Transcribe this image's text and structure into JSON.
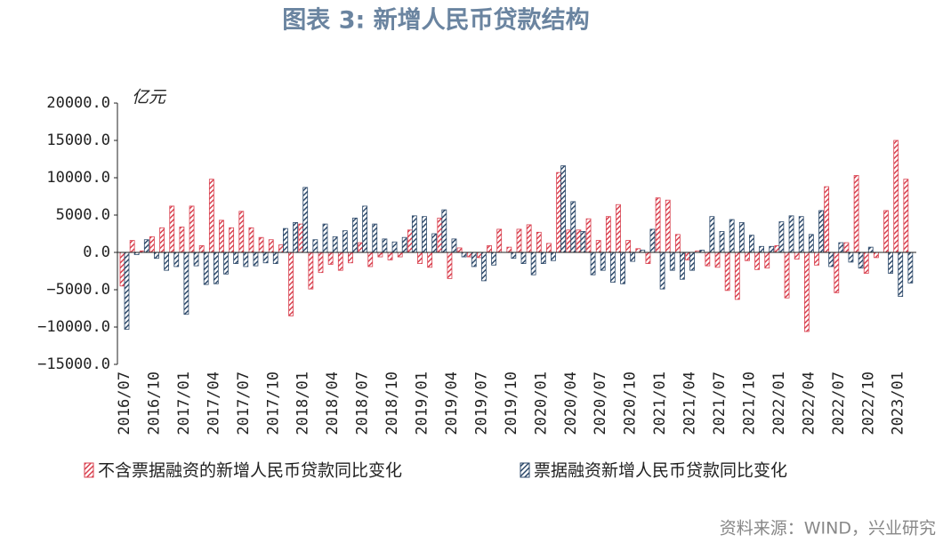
{
  "chart_data": {
    "type": "bar",
    "title": "图表 3:  新增人民币贷款结构",
    "unit_label": "亿元",
    "source": "资料来源：WIND，兴业研究",
    "categories": [
      "2016/07",
      null,
      null,
      "2016/10",
      null,
      null,
      "2017/01",
      null,
      null,
      "2017/04",
      null,
      null,
      "2017/07",
      null,
      null,
      "2017/10",
      null,
      null,
      "2018/01",
      null,
      null,
      "2018/04",
      null,
      null,
      "2018/07",
      null,
      null,
      "2018/10",
      null,
      null,
      "2019/01",
      null,
      null,
      "2019/04",
      null,
      null,
      "2019/07",
      null,
      null,
      "2019/10",
      null,
      null,
      "2020/01",
      null,
      null,
      "2020/04",
      null,
      null,
      "2020/07",
      null,
      null,
      "2020/10",
      null,
      null,
      "2021/01",
      null,
      null,
      "2021/04",
      null,
      null,
      "2021/07",
      null,
      null,
      "2021/10",
      null,
      null,
      "2022/01",
      null,
      null,
      "2022/04",
      null,
      null,
      "2022/07",
      null,
      null,
      "2022/10",
      null,
      null,
      "2023/01",
      null
    ],
    "series": [
      {
        "name": "不含票据融资的新增人民币贷款同比变化",
        "color": "#d9414f",
        "values": [
          -4500,
          1600,
          200,
          2100,
          3300,
          6200,
          3400,
          6200,
          900,
          9800,
          4300,
          3300,
          5500,
          3300,
          2000,
          1700,
          1000,
          -8500,
          3800,
          -4900,
          -2700,
          -1600,
          -2400,
          -1400,
          1300,
          -1900,
          -600,
          -1000,
          -600,
          3000,
          -1500,
          -2000,
          4600,
          -3500,
          600,
          -600,
          -700,
          900,
          3100,
          700,
          3100,
          3700,
          2700,
          1200,
          10700,
          3000,
          3000,
          4500,
          1600,
          4800,
          6400,
          1600,
          500,
          -1500,
          7300,
          7000,
          2400,
          -1000,
          200,
          -1800,
          -2000,
          -5100,
          -6300,
          -1100,
          -2300,
          -2100,
          900,
          -6100,
          -900,
          -10600,
          -1700,
          8800,
          -5400,
          1300,
          10300,
          -2800,
          -700,
          5600,
          15000,
          9800
        ]
      },
      {
        "name": "票据融资新增人民币贷款同比变化",
        "color": "#2e4a6b",
        "values": [
          -10300,
          -300,
          1700,
          -800,
          -2400,
          -1900,
          -8300,
          -1800,
          -4300,
          -4200,
          -2900,
          -1500,
          -1900,
          -1800,
          -1400,
          -1500,
          3200,
          4000,
          8700,
          1700,
          3800,
          2100,
          2900,
          4600,
          6200,
          3800,
          1800,
          1400,
          2000,
          4900,
          4800,
          2500,
          5700,
          1800,
          -600,
          -1900,
          -3800,
          -1700,
          0,
          -800,
          -1500,
          -3000,
          -1500,
          -1100,
          11600,
          6800,
          2800,
          -3000,
          -2400,
          -4000,
          -4200,
          -1200,
          300,
          3100,
          -4900,
          -2400,
          -3600,
          -2400,
          300,
          4800,
          2800,
          4400,
          4000,
          2300,
          800,
          800,
          4100,
          4900,
          4800,
          2400,
          5600,
          -1900,
          1300,
          -1300,
          -2100,
          700,
          0,
          -2800,
          -5900,
          -4100
        ]
      }
    ],
    "ylim": [
      -15000,
      20000
    ],
    "yticks": [
      {
        "value": -15000,
        "label": "−15000.0"
      },
      {
        "value": -10000,
        "label": "−10000.0"
      },
      {
        "value": -5000,
        "label": "−5000.0"
      },
      {
        "value": 0,
        "label": "0.0"
      },
      {
        "value": 5000,
        "label": "5000.0"
      },
      {
        "value": 10000,
        "label": "10000.0"
      },
      {
        "value": 15000,
        "label": "15000.0"
      },
      {
        "value": 20000,
        "label": "20000.0"
      }
    ],
    "legend": "bottom"
  }
}
